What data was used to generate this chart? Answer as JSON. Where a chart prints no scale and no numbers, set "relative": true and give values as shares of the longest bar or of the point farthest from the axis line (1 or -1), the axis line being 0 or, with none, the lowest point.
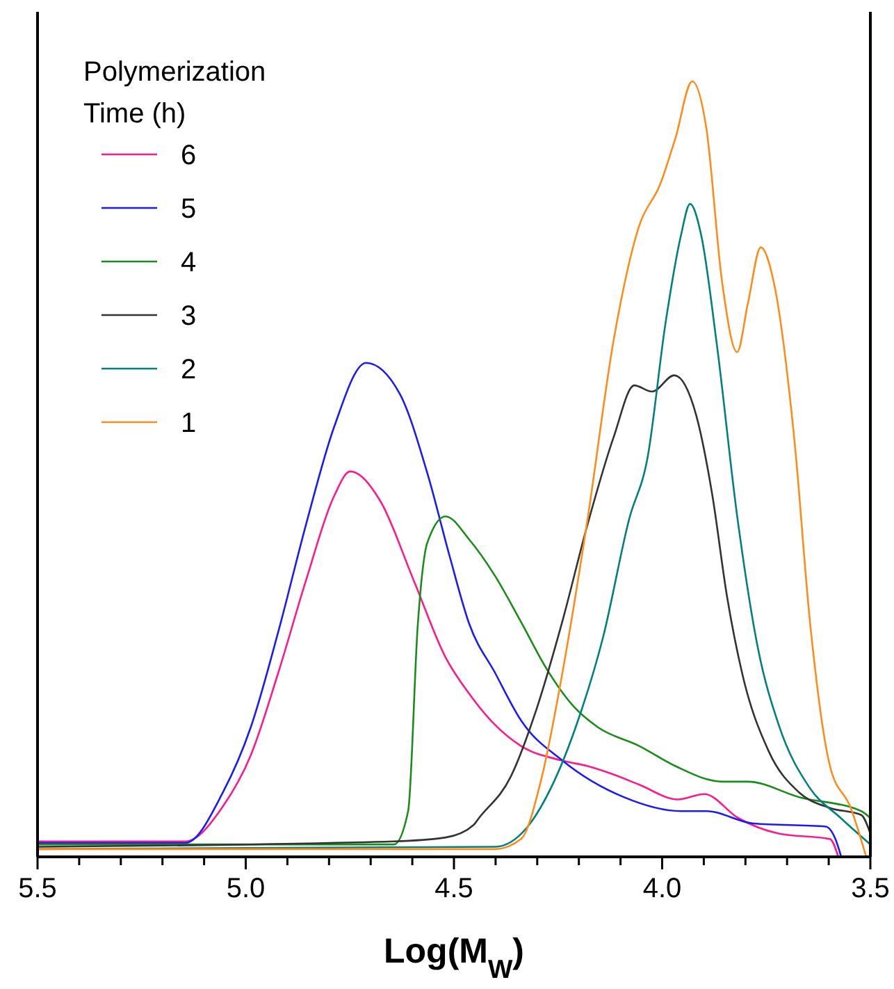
{
  "chart_data": {
    "type": "line",
    "relative": true,
    "xlabel": "Log(M$_{W}$)",
    "legend_title": "Polymerization Time (h)",
    "legend": "top left",
    "grid": false,
    "marker": "none",
    "line_style": "solid",
    "xlim": [
      5.5,
      3.5
    ],
    "xticks": [
      5.5,
      {
        "value": 5.4,
        "label": null
      },
      {
        "value": 5.3,
        "label": null
      },
      {
        "value": 5.2,
        "label": null
      },
      {
        "value": 5.1,
        "label": null
      },
      {
        "value": 5.0,
        "label": "5.0"
      },
      {
        "value": 4.9,
        "label": null
      },
      {
        "value": 4.8,
        "label": null
      },
      {
        "value": 4.7,
        "label": null
      },
      {
        "value": 4.6,
        "label": null
      },
      4.5,
      {
        "value": 4.4,
        "label": null
      },
      {
        "value": 4.3,
        "label": null
      },
      {
        "value": 4.2,
        "label": null
      },
      {
        "value": 4.1,
        "label": null
      },
      {
        "value": 4.0,
        "label": "4.0"
      },
      {
        "value": 3.9,
        "label": null
      },
      {
        "value": 3.8,
        "label": null
      },
      {
        "value": 3.7,
        "label": null
      },
      {
        "value": 3.6,
        "label": null
      },
      3.5
    ],
    "series": [
      {
        "name": "6",
        "color": "#ff1a8c",
        "x": [
          5.5,
          5.145,
          5.055,
          4.988,
          4.921,
          4.855,
          4.788,
          4.749,
          4.677,
          4.597,
          4.52,
          4.463,
          4.401,
          4.339,
          4.239,
          4.179,
          4.116,
          4.055,
          3.962,
          3.899,
          3.817,
          3.72,
          3.597,
          3.577
        ],
        "values": [
          0.02,
          0.02,
          0.065,
          0.131,
          0.239,
          0.357,
          0.465,
          0.497,
          0.459,
          0.357,
          0.257,
          0.21,
          0.17,
          0.143,
          0.124,
          0.117,
          0.106,
          0.093,
          0.074,
          0.081,
          0.05,
          0.03,
          0.023,
          0
        ]
      },
      {
        "name": "5",
        "color": "#1a1aff",
        "x": [
          5.5,
          5.145,
          5.055,
          4.988,
          4.921,
          4.855,
          4.788,
          4.711,
          4.63,
          4.564,
          4.51,
          4.463,
          4.401,
          4.339,
          4.239,
          4.092,
          3.955,
          3.894,
          3.781,
          3.607,
          3.584,
          3.57
        ],
        "values": [
          0.018,
          0.018,
          0.083,
          0.167,
          0.292,
          0.429,
          0.554,
          0.637,
          0.597,
          0.495,
          0.387,
          0.3,
          0.237,
          0.176,
          0.124,
          0.077,
          0.059,
          0.059,
          0.043,
          0.039,
          0.023,
          0
        ]
      },
      {
        "name": "4",
        "color": "#1a8c1a",
        "x": [
          5.5,
          4.644,
          4.61,
          4.587,
          4.564,
          4.52,
          4.463,
          4.401,
          4.339,
          4.277,
          4.216,
          4.154,
          4.055,
          3.968,
          3.856,
          3.794,
          3.671,
          3.522,
          3.5
        ],
        "values": [
          0.016,
          0.016,
          0.059,
          0.298,
          0.405,
          0.439,
          0.409,
          0.362,
          0.303,
          0.242,
          0.196,
          0.167,
          0.143,
          0.117,
          0.097,
          0.097,
          0.077,
          0.059,
          0.05
        ]
      },
      {
        "name": "3",
        "color": "#333333",
        "x": [
          5.5,
          4.644,
          4.52,
          4.453,
          4.44,
          4.364,
          4.302,
          4.24,
          4.179,
          4.116,
          4.067,
          4.024,
          3.971,
          3.918,
          3.88,
          3.844,
          3.808,
          3.744,
          3.671,
          3.597,
          3.522,
          3.5
        ],
        "values": [
          0.013,
          0.02,
          0.025,
          0.041,
          0.05,
          0.103,
          0.19,
          0.303,
          0.429,
          0.542,
          0.608,
          0.6,
          0.621,
          0.569,
          0.468,
          0.335,
          0.237,
          0.136,
          0.083,
          0.063,
          0.054,
          0.03
        ]
      },
      {
        "name": "2",
        "color": "#008080",
        "x": [
          5.5,
          4.401,
          4.326,
          4.266,
          4.202,
          4.142,
          4.079,
          4.035,
          3.992,
          3.955,
          3.933,
          3.906,
          3.869,
          3.819,
          3.77,
          3.72,
          3.647,
          3.571,
          3.5
        ],
        "values": [
          0.01,
          0.013,
          0.037,
          0.09,
          0.176,
          0.283,
          0.436,
          0.515,
          0.688,
          0.801,
          0.842,
          0.801,
          0.662,
          0.436,
          0.269,
          0.17,
          0.09,
          0.05,
          0.016
        ]
      },
      {
        "name": "1",
        "color": "#ff8c1a",
        "x": [
          5.5,
          4.4,
          4.339,
          4.289,
          4.24,
          4.179,
          4.116,
          4.055,
          4.005,
          3.968,
          3.928,
          3.894,
          3.856,
          3.82,
          3.794,
          3.763,
          3.732,
          3.682,
          3.645,
          3.597,
          3.547,
          3.51
        ],
        "values": [
          0.01,
          0.01,
          0.023,
          0.103,
          0.236,
          0.436,
          0.668,
          0.814,
          0.867,
          0.927,
          1.0,
          0.94,
          0.741,
          0.651,
          0.714,
          0.786,
          0.741,
          0.535,
          0.303,
          0.117,
          0.063,
          0
        ]
      }
    ]
  }
}
